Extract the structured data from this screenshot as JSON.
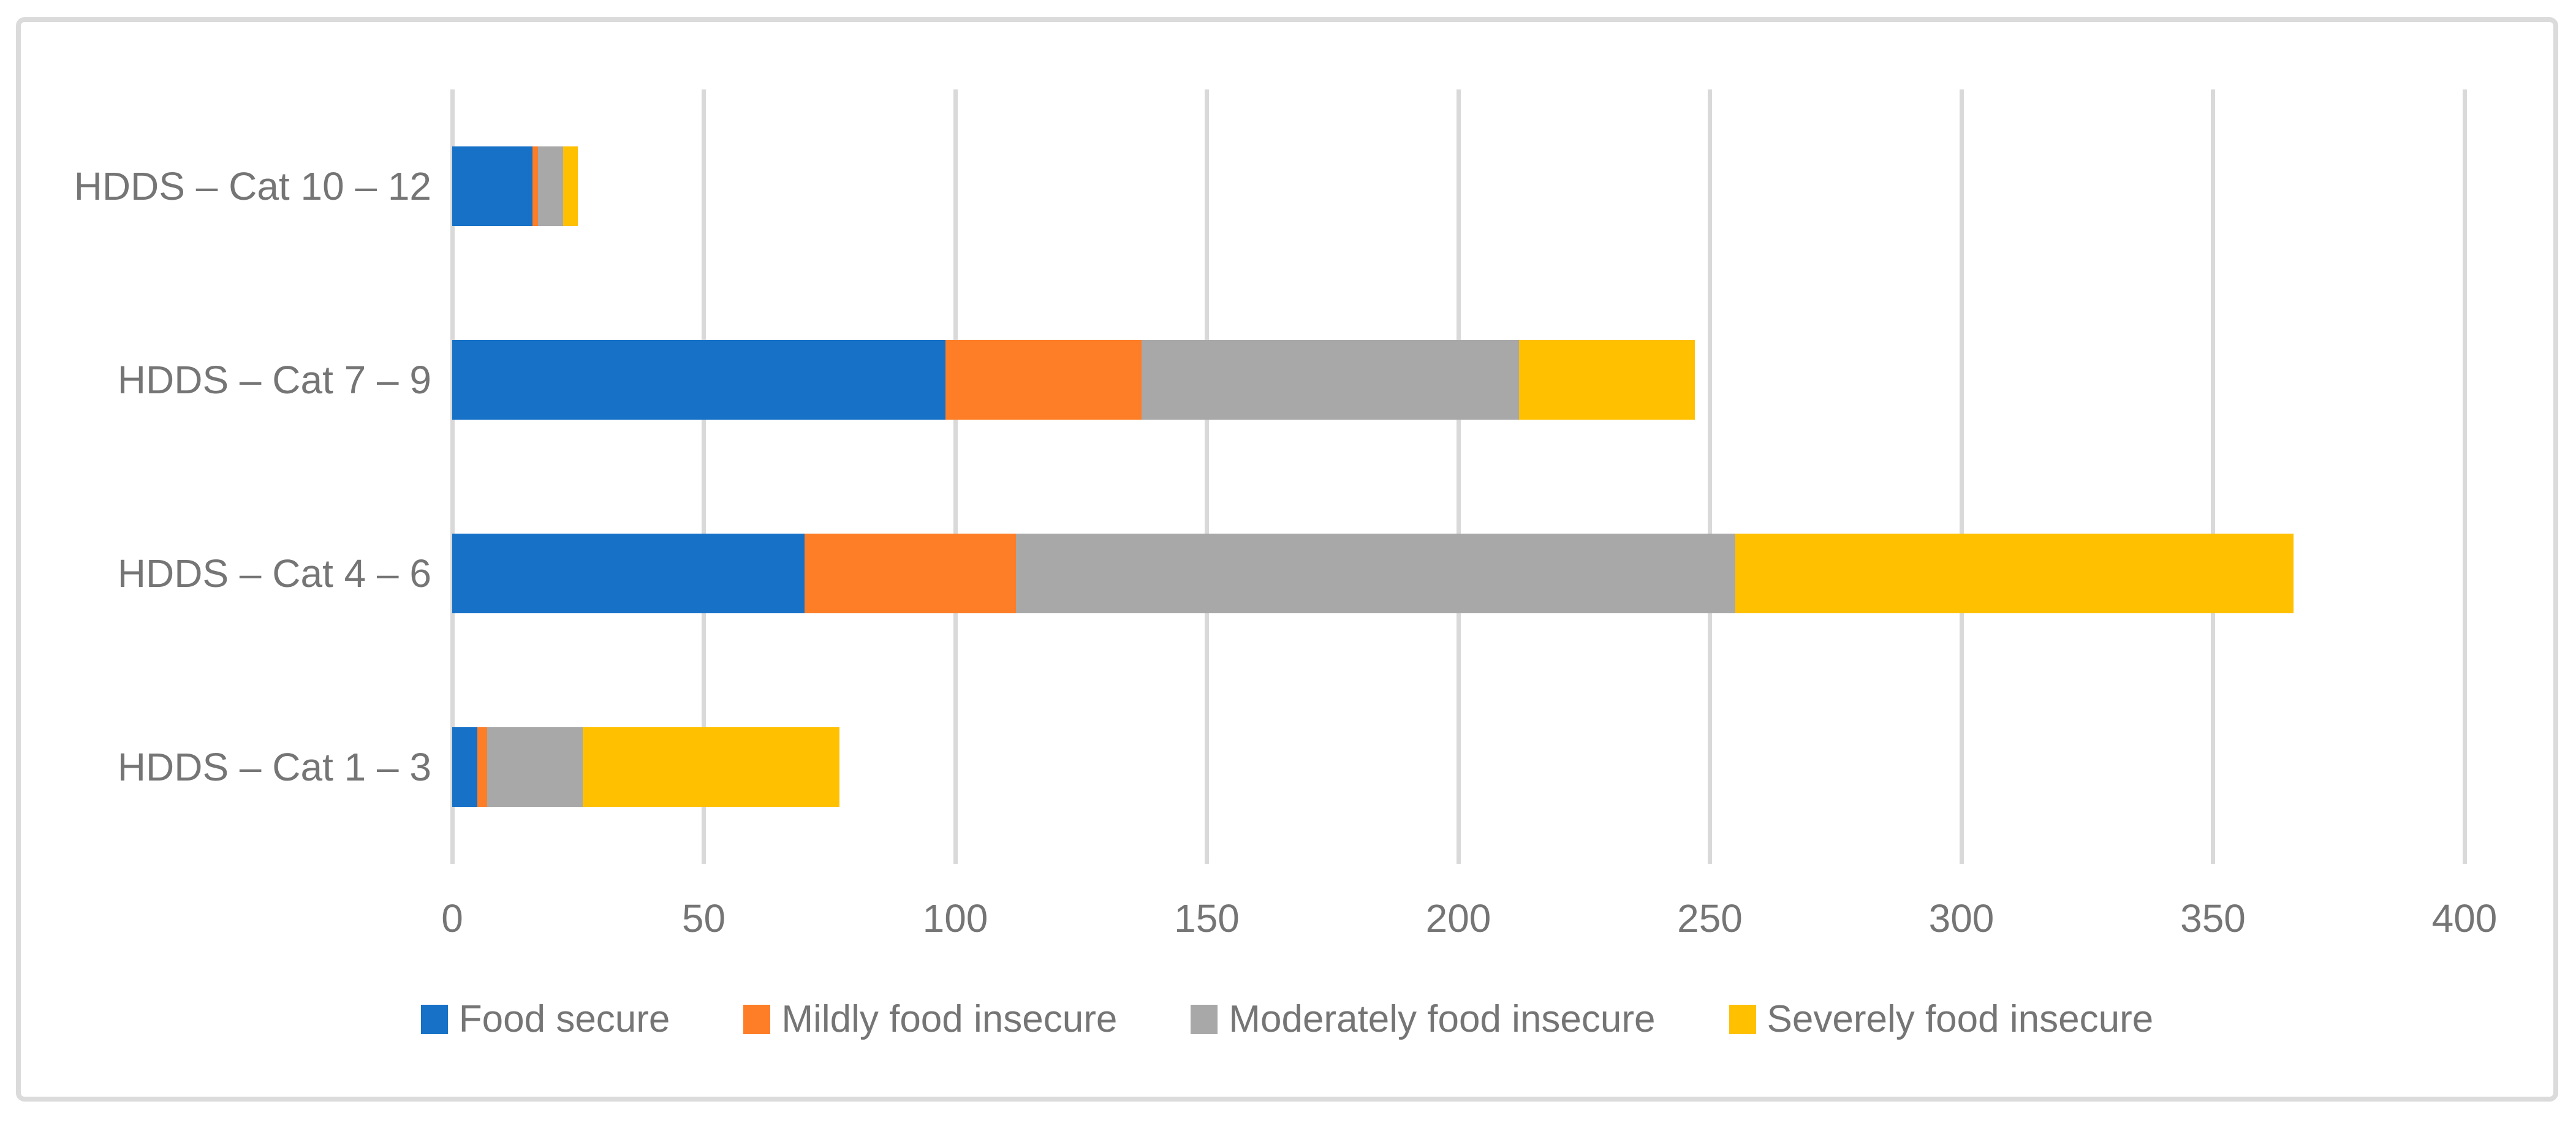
{
  "chart_data": {
    "type": "bar",
    "orientation": "horizontal",
    "stacked": true,
    "title": "",
    "xlabel": "",
    "ylabel": "",
    "categories": [
      "HDDS – Cat 10 – 12",
      "HDDS – Cat 7 – 9",
      "HDDS – Cat 4 – 6",
      "HDDS – Cat 1 – 3"
    ],
    "series": [
      {
        "name": "Food secure",
        "color": "#1771C7",
        "values": [
          16,
          98,
          70,
          5
        ]
      },
      {
        "name": "Mildly food insecure",
        "color": "#FD7E27",
        "values": [
          1,
          39,
          42,
          2
        ]
      },
      {
        "name": "Moderately food insecure",
        "color": "#A8A8A8",
        "values": [
          5,
          75,
          143,
          19
        ]
      },
      {
        "name": "Severely food insecure",
        "color": "#FFC000",
        "values": [
          3,
          35,
          111,
          51
        ]
      }
    ],
    "x_axis": {
      "min": 0,
      "max": 400,
      "tick_interval": 50,
      "tick_labels": [
        "0",
        "50",
        "100",
        "150",
        "200",
        "250",
        "300",
        "350",
        "400"
      ]
    },
    "totals_by_category": [
      25,
      247,
      366,
      77
    ],
    "legend_position": "bottom",
    "grid": true,
    "colors": {
      "gridline": "#D9D9D9",
      "frame_border": "#DBDBDB",
      "axis_text": "#757575",
      "background": "#FFFFFF"
    }
  }
}
